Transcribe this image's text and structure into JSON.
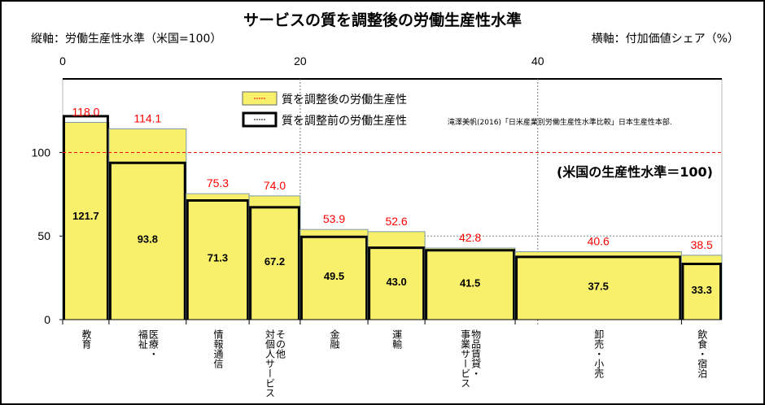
{
  "chart_data": {
    "type": "bar",
    "subtype": "variable-width",
    "title": "サービスの質を調整後の労働生産性水準",
    "ylabel": "縦軸：労働生産性水準（米国=100）",
    "xlabel": "横軸：付加価値シェア（%）",
    "xlim": [
      0,
      55.5
    ],
    "ylim": [
      0,
      144
    ],
    "x_ticks": [
      "0",
      "20",
      "40"
    ],
    "x_tick_values": [
      0,
      20,
      40
    ],
    "y_ticks": [
      "0",
      "50",
      "100"
    ],
    "y_tick_values": [
      0,
      50,
      100
    ],
    "reference_line": {
      "value": 100,
      "label": "(米国の生産性水準＝100)",
      "color": "#ff0000"
    },
    "source_note": "滝澤美帆(2016)「日米産業別労働生産性水準比較」日本生産性本部.",
    "legend": [
      "質を調整後の労働生産性",
      "質を調整前の労働生産性"
    ],
    "legend_position": "top-center",
    "categories": [
      "教育",
      "医療・\n福祉",
      "情報通信",
      "その他\n対個人サービス",
      "金融",
      "運輸",
      "物品賃貸・\n事業サービス",
      "卸売・小売",
      "飲食・宿泊"
    ],
    "widths": [
      3.9,
      6.5,
      5.3,
      4.3,
      5.7,
      4.8,
      7.6,
      14.0,
      3.4
    ],
    "series": [
      {
        "name": "質を調整後の労働生産性",
        "values": [
          118.0,
          114.1,
          75.3,
          74.0,
          53.9,
          52.6,
          42.8,
          40.6,
          38.5
        ],
        "labels": [
          "118.0",
          "114.1",
          "75.3",
          "74.0",
          "53.9",
          "52.6",
          "42.8",
          "40.6",
          "38.5"
        ]
      },
      {
        "name": "質を調整前の労働生産性",
        "values": [
          121.7,
          93.8,
          71.3,
          67.2,
          49.5,
          43.0,
          41.5,
          37.5,
          33.3
        ],
        "labels": [
          "121.7",
          "93.8",
          "71.3",
          "67.2",
          "49.5",
          "43.0",
          "41.5",
          "37.5",
          "33.3"
        ]
      }
    ],
    "colors": {
      "adjusted": "#f8f06a",
      "before": "#000000",
      "label_adjusted": "#ff0000",
      "ref": "#ff0000"
    }
  }
}
